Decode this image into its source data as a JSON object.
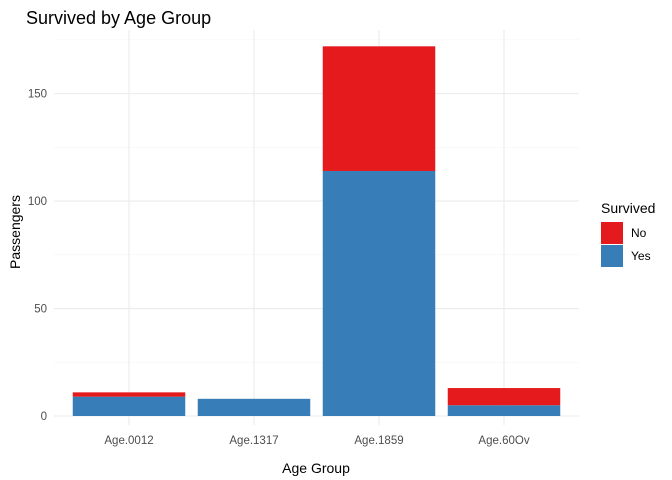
{
  "chart_data": {
    "type": "bar",
    "stacked": true,
    "title": "Survived by Age Group",
    "xlabel": "Age Group",
    "ylabel": "Passengers",
    "categories": [
      "Age.0012",
      "Age.1317",
      "Age.1859",
      "Age.60Ov"
    ],
    "series": [
      {
        "name": "No",
        "color": "#e41a1c",
        "values": [
          2,
          0,
          58,
          8
        ]
      },
      {
        "name": "Yes",
        "color": "#377eb8",
        "values": [
          9,
          8,
          114,
          5
        ]
      }
    ],
    "ylim": [
      0,
      176
    ],
    "yticks": [
      0,
      50,
      100,
      150
    ],
    "grid": true,
    "legend": {
      "title": "Survived",
      "position": "right"
    }
  }
}
